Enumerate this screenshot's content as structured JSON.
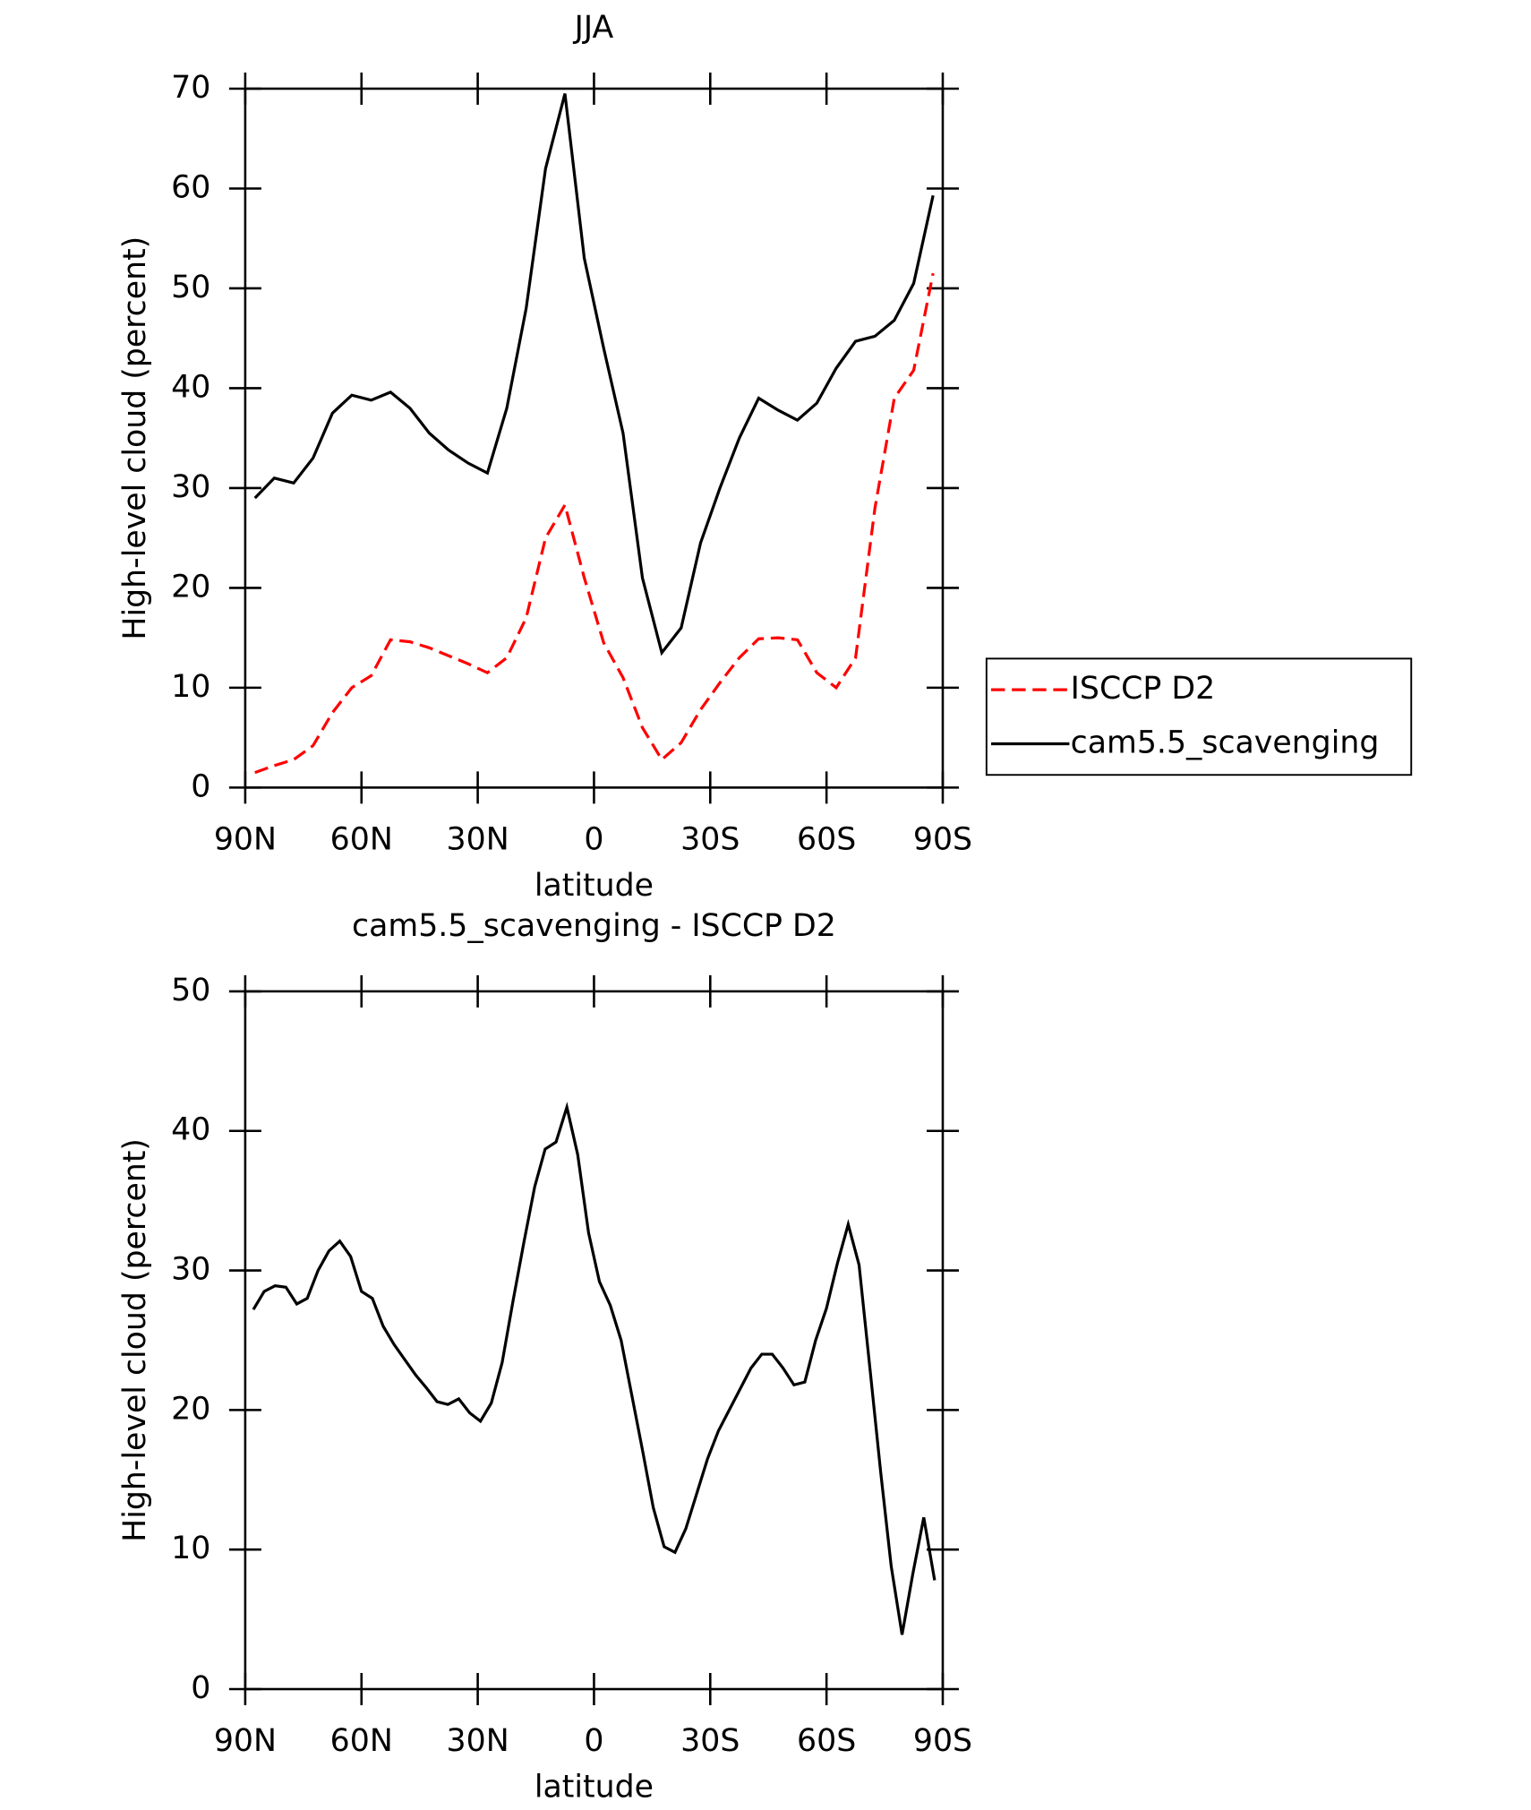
{
  "chart_data": [
    {
      "type": "line",
      "title": "JJA",
      "xlabel": "latitude",
      "ylabel": "High-level cloud (percent)",
      "x": [
        87.5,
        82.5,
        77.5,
        72.5,
        67.5,
        62.5,
        57.5,
        52.5,
        47.5,
        42.5,
        37.5,
        32.5,
        27.5,
        22.5,
        17.5,
        12.5,
        7.5,
        2.5,
        -2.5,
        -7.5,
        -12.5,
        -17.5,
        -22.5,
        -27.5,
        -32.5,
        -37.5,
        -42.5,
        -47.5,
        -52.5,
        -57.5,
        -62.5,
        -67.5,
        -72.5,
        -77.5,
        -82.5,
        -87.5
      ],
      "series": [
        {
          "name": "ISCCP D2",
          "color": "#ff0000",
          "linestyle": "dashed",
          "values": [
            1.5,
            2.2,
            2.8,
            4.2,
            7.5,
            10,
            11.2,
            14.8,
            14.6,
            14,
            13.2,
            12.4,
            11.5,
            13,
            17,
            25,
            28.3,
            21,
            14.5,
            11,
            6,
            2.8,
            4.5,
            7.8,
            10.5,
            13,
            14.9,
            15,
            14.8,
            11.5,
            10,
            13,
            28,
            39,
            41.8,
            51.5
          ]
        },
        {
          "name": "cam5.5_scavenging",
          "color": "#000000",
          "linestyle": "solid",
          "values": [
            29,
            31,
            30.5,
            33,
            37.5,
            39.3,
            38.8,
            39.6,
            38,
            35.5,
            33.8,
            32.5,
            31.5,
            38,
            48,
            62,
            69.5,
            53,
            44,
            35.5,
            21,
            13.5,
            16,
            24.5,
            30,
            35,
            39,
            37.8,
            36.8,
            38.5,
            42,
            44.7,
            45.2,
            46.8,
            50.5,
            59.3
          ]
        }
      ],
      "xlim": [
        90,
        -90
      ],
      "ylim": [
        0,
        70
      ],
      "xticks": [
        {
          "value": 90,
          "label": "90N"
        },
        {
          "value": 60,
          "label": "60N"
        },
        {
          "value": 30,
          "label": "30N"
        },
        0,
        {
          "value": -30,
          "label": "30S"
        },
        {
          "value": -60,
          "label": "60S"
        },
        {
          "value": -90,
          "label": "90S"
        }
      ],
      "yticks": [
        0,
        10,
        20,
        30,
        40,
        50,
        60,
        70
      ],
      "legend": "right"
    },
    {
      "type": "line",
      "title": "cam5.5_scavenging - ISCCP D2",
      "xlabel": "latitude",
      "ylabel": "High-level cloud (percent)",
      "x": [
        87.9,
        85.1,
        82.3,
        79.5,
        76.7,
        74.0,
        71.2,
        68.4,
        65.6,
        62.8,
        60.0,
        57.2,
        54.4,
        51.6,
        48.8,
        46.0,
        43.3,
        40.5,
        37.7,
        34.9,
        32.1,
        29.3,
        26.5,
        23.7,
        20.9,
        18.1,
        15.3,
        12.6,
        9.8,
        7.0,
        4.2,
        1.4,
        -1.4,
        -4.2,
        -7.0,
        -9.8,
        -12.6,
        -15.3,
        -18.1,
        -20.9,
        -23.7,
        -26.5,
        -29.3,
        -32.1,
        -34.9,
        -37.7,
        -40.5,
        -43.3,
        -46.0,
        -48.8,
        -51.6,
        -54.4,
        -57.2,
        -60.0,
        -62.8,
        -65.6,
        -68.4,
        -71.2,
        -74.0,
        -76.7,
        -79.5,
        -82.3,
        -85.1,
        -87.9
      ],
      "series": [
        {
          "color": "#000000",
          "linestyle": "solid",
          "values": [
            27.2,
            28.5,
            28.9,
            28.8,
            27.6,
            28,
            30,
            31.4,
            32.1,
            31,
            28.5,
            28,
            26,
            24.7,
            23.6,
            22.5,
            21.6,
            20.6,
            20.4,
            20.8,
            19.8,
            19.2,
            20.5,
            23.4,
            27.8,
            32,
            36,
            38.7,
            39.2,
            41.7,
            38.3,
            32.7,
            29.2,
            27.5,
            25,
            21,
            17,
            13,
            10.2,
            9.8,
            11.5,
            14,
            16.5,
            18.5,
            20,
            21.5,
            23,
            24,
            24,
            23,
            21.8,
            22,
            25,
            27.3,
            30.5,
            33.3,
            30.4,
            23,
            15.5,
            8.8,
            3.9,
            8.3,
            12.3,
            7.8
          ]
        }
      ],
      "xlim": [
        90,
        -90
      ],
      "ylim": [
        0,
        50
      ],
      "xticks": [
        {
          "value": 90,
          "label": "90N"
        },
        {
          "value": 60,
          "label": "60N"
        },
        {
          "value": 30,
          "label": "30N"
        },
        0,
        {
          "value": -30,
          "label": "30S"
        },
        {
          "value": -60,
          "label": "60S"
        },
        {
          "value": -90,
          "label": "90S"
        }
      ],
      "yticks": [
        0,
        10,
        20,
        30,
        40,
        50
      ]
    }
  ]
}
